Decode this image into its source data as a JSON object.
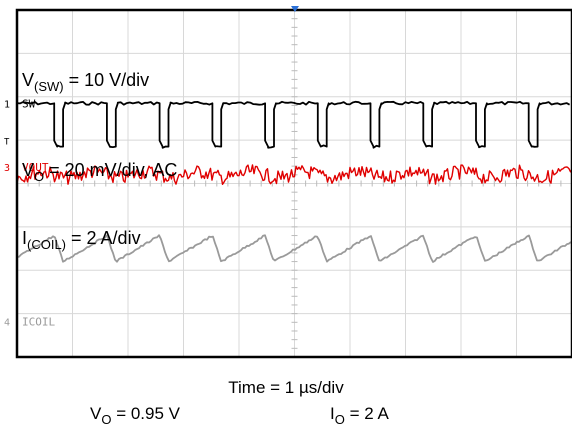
{
  "chart_data": {
    "type": "line",
    "title": "",
    "x_divisions": 10,
    "y_divisions": 8,
    "grid": true,
    "period_divisions": 0.95,
    "first_pulse_division": 0.67,
    "channel_markers": [
      {
        "id": "T",
        "text": "T",
        "color": "#000000"
      },
      {
        "id": "sw",
        "text": "1",
        "color": "#000000"
      },
      {
        "id": "vout",
        "text": "3",
        "color": "#e00000"
      },
      {
        "id": "coil",
        "text": "4",
        "color": "#9a9a9a"
      }
    ],
    "series": [
      {
        "id": "sw",
        "name": "SW",
        "color": "#000000",
        "label_main": "V",
        "label_sub": "(SW)",
        "label_rest": " = 10 V/div",
        "scale": "10 V/div",
        "shape": "pulse",
        "baseline_div": 2.15,
        "high_div": 3.15
      },
      {
        "id": "vout",
        "name": "VOUT",
        "color": "#e00000",
        "label_main": "V",
        "label_sub": "O",
        "label_rest": " = 20 mV/div, AC",
        "scale": "20 mV/div, AC",
        "shape": "noise",
        "baseline_div": 3.8
      },
      {
        "id": "coil",
        "name": "ICOIL",
        "color": "#9a9a9a",
        "label_main": "I",
        "label_sub": "(COIL)",
        "label_rest": " = 2 A/div",
        "scale": "2 A/div",
        "shape": "triangle",
        "low_div": 5.2,
        "high_div": 5.8
      }
    ]
  },
  "captions": {
    "time": "Time = 1 µs/div",
    "vo_main": "V",
    "vo_sub": "O",
    "vo_rest": " = 0.95 V",
    "io_main": "I",
    "io_sub": "O",
    "io_rest": " = 2 A"
  }
}
